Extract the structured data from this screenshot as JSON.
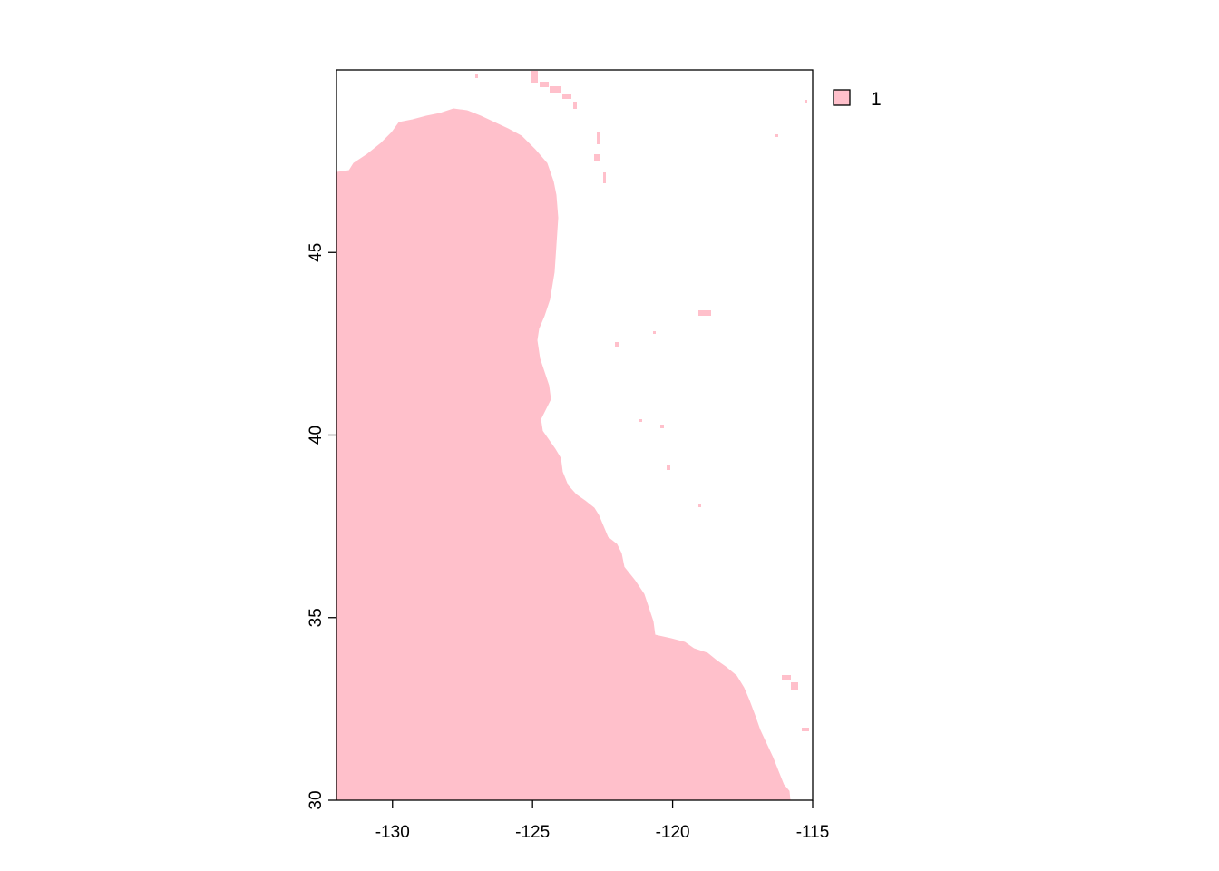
{
  "map": {
    "type": "raster",
    "xlim": [
      -132,
      -115
    ],
    "ylim": [
      30,
      50
    ],
    "x_ticks": [
      -130,
      -125,
      -120,
      -115
    ],
    "x_tick_labels": [
      "-130",
      "-125",
      "-120",
      "-115"
    ],
    "y_ticks": [
      30,
      35,
      40,
      45
    ],
    "y_tick_labels": [
      "30",
      "35",
      "40",
      "45"
    ],
    "fill_color": "#FFC0CB",
    "legend": {
      "position": "top-right",
      "entries": [
        {
          "label": "1",
          "color": "#FFC0CB"
        }
      ]
    }
  }
}
